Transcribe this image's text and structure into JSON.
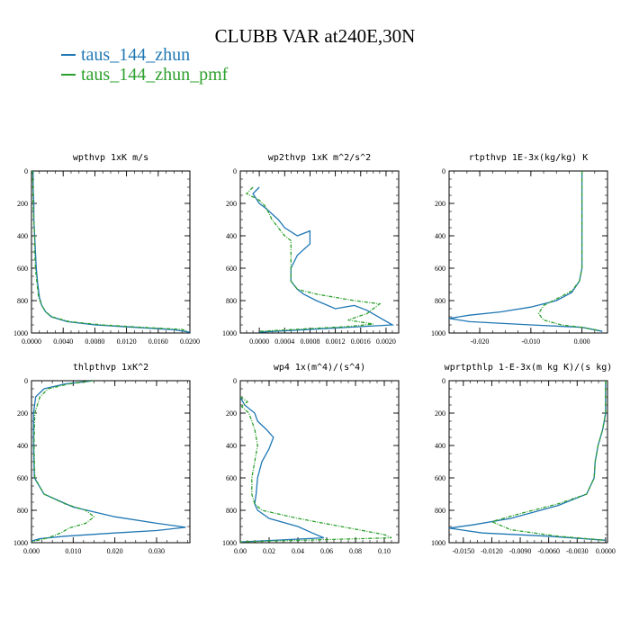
{
  "figure": {
    "title": "CLUBB VAR at240E,30N",
    "legend": [
      {
        "label": "taus_144_zhun",
        "color": "#1f77b4"
      },
      {
        "label": "taus_144_zhun_pmf",
        "color": "#2ca02c"
      }
    ]
  },
  "chart_data": [
    {
      "type": "line",
      "title": "wpthvp  1xK m/s",
      "xlim": [
        0,
        0.02
      ],
      "ylim": [
        1000,
        0
      ],
      "xticks": [
        "0.0000",
        "0.0040",
        "0.0080",
        "0.0120",
        "0.0160",
        "0.0200"
      ],
      "xtick_values": [
        0,
        0.004,
        0.008,
        0.012,
        0.016,
        0.02
      ],
      "yticks": [
        "0",
        "200",
        "400",
        "600",
        "800",
        "1000"
      ],
      "ytick_values": [
        0,
        200,
        400,
        600,
        800,
        1000
      ],
      "series": [
        {
          "name": "taus_144_zhun",
          "color": "#1f77b4",
          "dashed": false,
          "points": [
            [
              0.0002,
              0
            ],
            [
              0.0002,
              100
            ],
            [
              0.0003,
              200
            ],
            [
              0.0003,
              300
            ],
            [
              0.0004,
              400
            ],
            [
              0.0005,
              500
            ],
            [
              0.0006,
              600
            ],
            [
              0.0008,
              700
            ],
            [
              0.001,
              780
            ],
            [
              0.0013,
              830
            ],
            [
              0.0018,
              870
            ],
            [
              0.0025,
              900
            ],
            [
              0.0045,
              930
            ],
            [
              0.008,
              950
            ],
            [
              0.013,
              965
            ],
            [
              0.018,
              980
            ],
            [
              0.02,
              995
            ]
          ]
        },
        {
          "name": "taus_144_zhun_pmf",
          "color": "#2ca02c",
          "dashed": true,
          "points": [
            [
              0.0001,
              0
            ],
            [
              0.0002,
              100
            ],
            [
              0.0002,
              200
            ],
            [
              0.0003,
              300
            ],
            [
              0.0004,
              400
            ],
            [
              0.0004,
              500
            ],
            [
              0.0005,
              600
            ],
            [
              0.0007,
              700
            ],
            [
              0.0009,
              780
            ],
            [
              0.0013,
              830
            ],
            [
              0.0018,
              870
            ],
            [
              0.0026,
              900
            ],
            [
              0.0048,
              930
            ],
            [
              0.009,
              950
            ],
            [
              0.014,
              965
            ],
            [
              0.019,
              978
            ],
            [
              0.0197,
              990
            ]
          ]
        }
      ]
    },
    {
      "type": "line",
      "title": "wp2thvp  1xK m^2/s^2",
      "xlim": [
        -0.0003,
        0.0022
      ],
      "ylim": [
        1000,
        0
      ],
      "xticks": [
        "0.0000",
        "0.0004",
        "0.0008",
        "0.0012",
        "0.0016",
        "0.0020"
      ],
      "xtick_values": [
        0,
        0.0004,
        0.0008,
        0.0012,
        0.0016,
        0.002
      ],
      "yticks": [
        "0",
        "200",
        "400",
        "600",
        "800",
        "1000"
      ],
      "ytick_values": [
        0,
        200,
        400,
        600,
        800,
        1000
      ],
      "series": [
        {
          "name": "taus_144_zhun",
          "color": "#1f77b4",
          "dashed": false,
          "points": [
            [
              0.0,
              100
            ],
            [
              -0.0001,
              140
            ],
            [
              0.0,
              200
            ],
            [
              0.0001,
              230
            ],
            [
              0.0003,
              300
            ],
            [
              0.0004,
              350
            ],
            [
              0.0006,
              400
            ],
            [
              0.0008,
              370
            ],
            [
              0.0008,
              450
            ],
            [
              0.0006,
              520
            ],
            [
              0.0005,
              600
            ],
            [
              0.0005,
              680
            ],
            [
              0.0006,
              730
            ],
            [
              0.0007,
              760
            ],
            [
              0.0009,
              800
            ],
            [
              0.0012,
              850
            ],
            [
              0.0015,
              830
            ],
            [
              0.0017,
              860
            ],
            [
              0.0021,
              950
            ],
            [
              0.0,
              995
            ]
          ]
        },
        {
          "name": "taus_144_zhun_pmf",
          "color": "#2ca02c",
          "dashed": true,
          "points": [
            [
              -0.0001,
              100
            ],
            [
              -0.0002,
              140
            ],
            [
              0.0,
              180
            ],
            [
              0.0001,
              220
            ],
            [
              0.0002,
              300
            ],
            [
              0.0003,
              350
            ],
            [
              0.0004,
              400
            ],
            [
              0.0005,
              430
            ],
            [
              0.0005,
              520
            ],
            [
              0.0005,
              600
            ],
            [
              0.0005,
              680
            ],
            [
              0.0006,
              730
            ],
            [
              0.0009,
              760
            ],
            [
              0.0015,
              800
            ],
            [
              0.0019,
              820
            ],
            [
              0.0017,
              880
            ],
            [
              0.0014,
              920
            ],
            [
              0.0018,
              945
            ],
            [
              0.0014,
              960
            ],
            [
              0.0,
              990
            ]
          ]
        }
      ]
    },
    {
      "type": "line",
      "title": "rtpthvp  1E-3x(kg/kg) K",
      "xlim": [
        -0.026,
        0.005
      ],
      "ylim": [
        1000,
        0
      ],
      "xticks": [
        "-0.020",
        "-0.010",
        "0.000"
      ],
      "xtick_values": [
        -0.02,
        -0.01,
        0.0
      ],
      "yticks": [
        "0",
        "200",
        "400",
        "600",
        "800",
        "1000"
      ],
      "ytick_values": [
        0,
        200,
        400,
        600,
        800,
        1000
      ],
      "series": [
        {
          "name": "taus_144_zhun",
          "color": "#1f77b4",
          "dashed": false,
          "points": [
            [
              0.0,
              0
            ],
            [
              0.0,
              300
            ],
            [
              0.0,
              600
            ],
            [
              -0.0005,
              680
            ],
            [
              -0.002,
              750
            ],
            [
              -0.005,
              800
            ],
            [
              -0.01,
              840
            ],
            [
              -0.016,
              870
            ],
            [
              -0.022,
              890
            ],
            [
              -0.026,
              910
            ],
            [
              -0.022,
              930
            ],
            [
              -0.01,
              950
            ],
            [
              0.0,
              965
            ],
            [
              0.004,
              990
            ]
          ]
        },
        {
          "name": "taus_144_zhun_pmf",
          "color": "#2ca02c",
          "dashed": true,
          "points": [
            [
              0.0,
              0
            ],
            [
              0.0,
              300
            ],
            [
              0.0,
              600
            ],
            [
              -0.0005,
              680
            ],
            [
              -0.002,
              740
            ],
            [
              -0.005,
              790
            ],
            [
              -0.0075,
              830
            ],
            [
              -0.0085,
              880
            ],
            [
              -0.0075,
              920
            ],
            [
              -0.004,
              950
            ],
            [
              0.0,
              965
            ],
            [
              0.0035,
              985
            ]
          ]
        }
      ]
    },
    {
      "type": "line",
      "title": "thlpthvp  1xK^2",
      "xlim": [
        0,
        0.038
      ],
      "ylim": [
        1000,
        0
      ],
      "xticks": [
        "0.000",
        "0.010",
        "0.020",
        "0.030"
      ],
      "xtick_values": [
        0,
        0.01,
        0.02,
        0.03
      ],
      "yticks": [
        "0",
        "200",
        "400",
        "600",
        "800",
        "1000"
      ],
      "ytick_values": [
        0,
        200,
        400,
        600,
        800,
        1000
      ],
      "series": [
        {
          "name": "taus_144_zhun",
          "color": "#1f77b4",
          "dashed": false,
          "points": [
            [
              0.015,
              0
            ],
            [
              0.008,
              20
            ],
            [
              0.003,
              50
            ],
            [
              0.001,
              100
            ],
            [
              0.0005,
              200
            ],
            [
              0.0005,
              400
            ],
            [
              0.0007,
              600
            ],
            [
              0.003,
              700
            ],
            [
              0.01,
              780
            ],
            [
              0.02,
              840
            ],
            [
              0.03,
              880
            ],
            [
              0.037,
              905
            ],
            [
              0.03,
              925
            ],
            [
              0.02,
              940
            ],
            [
              0.008,
              960
            ],
            [
              0.002,
              975
            ],
            [
              0.0,
              990
            ]
          ]
        },
        {
          "name": "taus_144_zhun_pmf",
          "color": "#2ca02c",
          "dashed": true,
          "points": [
            [
              0.015,
              0
            ],
            [
              0.009,
              20
            ],
            [
              0.004,
              50
            ],
            [
              0.002,
              100
            ],
            [
              0.0008,
              200
            ],
            [
              0.0006,
              400
            ],
            [
              0.0008,
              600
            ],
            [
              0.003,
              700
            ],
            [
              0.008,
              760
            ],
            [
              0.013,
              800
            ],
            [
              0.015,
              840
            ],
            [
              0.013,
              880
            ],
            [
              0.009,
              910
            ],
            [
              0.007,
              940
            ],
            [
              0.004,
              970
            ],
            [
              0.0,
              995
            ]
          ]
        }
      ]
    },
    {
      "type": "line",
      "title": "wp4  1x(m^4)/(s^4)",
      "xlim": [
        0,
        0.11
      ],
      "ylim": [
        1000,
        0
      ],
      "xticks": [
        "0.00",
        "0.02",
        "0.04",
        "0.06",
        "0.08",
        "0.10"
      ],
      "xtick_values": [
        0,
        0.02,
        0.04,
        0.06,
        0.08,
        0.1
      ],
      "yticks": [
        "0",
        "200",
        "400",
        "600",
        "800",
        "1000"
      ],
      "ytick_values": [
        0,
        200,
        400,
        600,
        800,
        1000
      ],
      "series": [
        {
          "name": "taus_144_zhun",
          "color": "#1f77b4",
          "dashed": false,
          "points": [
            [
              0.0,
              100
            ],
            [
              0.003,
              150
            ],
            [
              0.01,
              200
            ],
            [
              0.012,
              250
            ],
            [
              0.018,
              300
            ],
            [
              0.023,
              350
            ],
            [
              0.02,
              420
            ],
            [
              0.015,
              500
            ],
            [
              0.012,
              600
            ],
            [
              0.011,
              700
            ],
            [
              0.01,
              760
            ],
            [
              0.012,
              800
            ],
            [
              0.02,
              850
            ],
            [
              0.04,
              900
            ],
            [
              0.05,
              940
            ],
            [
              0.058,
              970
            ],
            [
              0.0,
              995
            ]
          ]
        },
        {
          "name": "taus_144_zhun_pmf",
          "color": "#2ca02c",
          "dashed": true,
          "points": [
            [
              0.0,
              100
            ],
            [
              0.005,
              130
            ],
            [
              0.001,
              160
            ],
            [
              0.006,
              200
            ],
            [
              0.008,
              250
            ],
            [
              0.01,
              300
            ],
            [
              0.012,
              400
            ],
            [
              0.01,
              500
            ],
            [
              0.008,
              600
            ],
            [
              0.008,
              700
            ],
            [
              0.01,
              760
            ],
            [
              0.015,
              800
            ],
            [
              0.04,
              850
            ],
            [
              0.07,
              900
            ],
            [
              0.1,
              950
            ],
            [
              0.105,
              970
            ],
            [
              0.0,
              995
            ]
          ]
        }
      ]
    },
    {
      "type": "line",
      "title": "wprtpthlp  1-E-3x(m kg K)/(s kg)",
      "xlim": [
        -0.0165,
        0.0002
      ],
      "ylim": [
        1000,
        0
      ],
      "xticks": [
        "-0.0150",
        "-0.0120",
        "-0.0090",
        "-0.0060",
        "-0.0030",
        "0.0000"
      ],
      "xtick_values": [
        -0.015,
        -0.012,
        -0.009,
        -0.006,
        -0.003,
        0.0
      ],
      "yticks": [
        "0",
        "200",
        "400",
        "600",
        "800",
        "1000"
      ],
      "ytick_values": [
        0,
        200,
        400,
        600,
        800,
        1000
      ],
      "series": [
        {
          "name": "taus_144_zhun",
          "color": "#1f77b4",
          "dashed": false,
          "points": [
            [
              0.0,
              0
            ],
            [
              0.0,
              200
            ],
            [
              -0.0003,
              300
            ],
            [
              -0.0008,
              400
            ],
            [
              -0.0011,
              500
            ],
            [
              -0.0012,
              600
            ],
            [
              -0.002,
              700
            ],
            [
              -0.005,
              770
            ],
            [
              -0.01,
              850
            ],
            [
              -0.014,
              890
            ],
            [
              -0.0165,
              910
            ],
            [
              -0.013,
              940
            ],
            [
              -0.006,
              960
            ],
            [
              0.0,
              985
            ]
          ]
        },
        {
          "name": "taus_144_zhun_pmf",
          "color": "#2ca02c",
          "dashed": true,
          "points": [
            [
              0.0,
              0
            ],
            [
              0.0,
              200
            ],
            [
              -0.0003,
              300
            ],
            [
              -0.0008,
              400
            ],
            [
              -0.0011,
              500
            ],
            [
              -0.0012,
              600
            ],
            [
              -0.002,
              700
            ],
            [
              -0.005,
              760
            ],
            [
              -0.009,
              820
            ],
            [
              -0.012,
              870
            ],
            [
              -0.01,
              920
            ],
            [
              -0.005,
              960
            ],
            [
              0.0,
              985
            ]
          ]
        }
      ]
    }
  ]
}
